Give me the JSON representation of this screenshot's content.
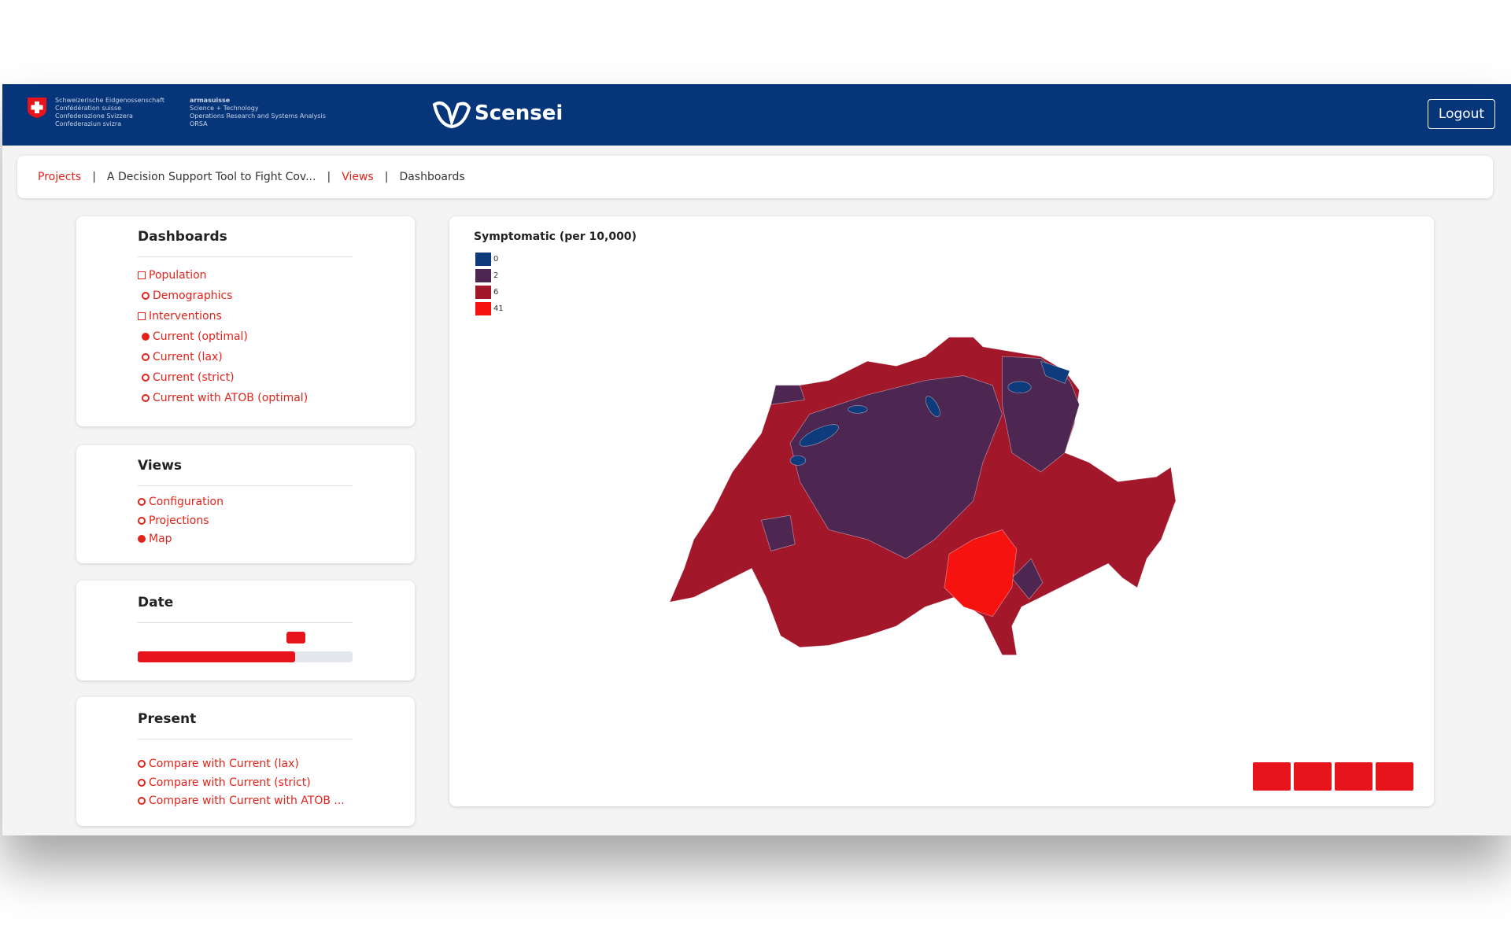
{
  "header": {
    "federal": [
      "Schweizerische Eidgenossenschaft",
      "Confédération suisse",
      "Confederazione Svizzera",
      "Confederaziun svizra"
    ],
    "agency": [
      "armasuisse",
      "Science + Technology",
      "Operations Research and Systems Analysis",
      "ORSA"
    ],
    "brand": "Scensei",
    "logout": "Logout"
  },
  "breadcrumb": [
    {
      "text": "Projects",
      "link": true
    },
    {
      "text": "A Decision Support Tool to Fight Cov...",
      "link": false
    },
    {
      "text": "Views",
      "link": true
    },
    {
      "text": "Dashboards",
      "link": false
    }
  ],
  "panels": {
    "dashboards": {
      "title": "Dashboards",
      "items": [
        {
          "text": "Population",
          "kind": "group"
        },
        {
          "text": "Demographics",
          "kind": "radio",
          "selected": false
        },
        {
          "text": "Interventions",
          "kind": "group"
        },
        {
          "text": "Current (optimal)",
          "kind": "radio",
          "selected": true
        },
        {
          "text": "Current (lax)",
          "kind": "radio",
          "selected": false
        },
        {
          "text": "Current (strict)",
          "kind": "radio",
          "selected": false
        },
        {
          "text": "Current with ATOB (optimal)",
          "kind": "radio",
          "selected": false
        }
      ]
    },
    "views": {
      "title": "Views",
      "items": [
        {
          "text": "Configuration",
          "kind": "radio",
          "selected": false
        },
        {
          "text": "Projections",
          "kind": "radio",
          "selected": false
        },
        {
          "text": "Map",
          "kind": "radio",
          "selected": true
        }
      ]
    },
    "date": {
      "title": "Date"
    },
    "present": {
      "title": "Present",
      "items": [
        {
          "text": "Compare with Current (lax)",
          "kind": "radio",
          "selected": false
        },
        {
          "text": "Compare with Current (strict)",
          "kind": "radio",
          "selected": false
        },
        {
          "text": "Compare with Current with ATOB ...",
          "kind": "radio",
          "selected": false
        }
      ]
    }
  },
  "map": {
    "title": "Symptomatic (per 10,000)",
    "legend": [
      {
        "label": 0,
        "color": "#0d3b7c"
      },
      {
        "label": 2,
        "color": "#4e2652"
      },
      {
        "label": 6,
        "color": "#a3172b"
      },
      {
        "label": 41,
        "color": "#f5120f"
      }
    ]
  }
}
